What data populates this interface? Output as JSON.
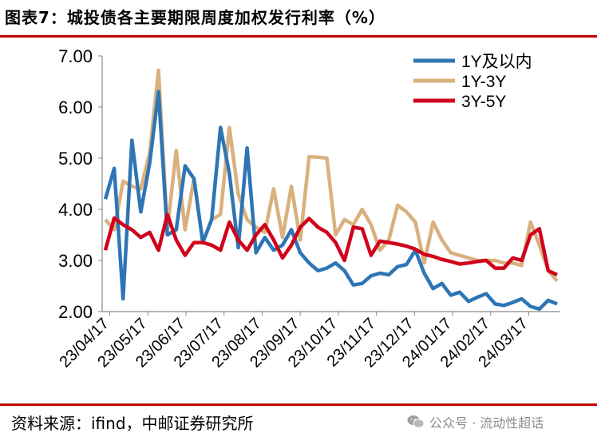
{
  "header": {
    "title": "图表7：城投债各主要期限周度加权发行利率（%）"
  },
  "footer": {
    "source": "资料来源：ifind，中邮证券研究所",
    "watermark": "公众号 · 流动性超话",
    "watermark_icon": "wechat-icon"
  },
  "colors": {
    "accent": "#c00000",
    "series_1": "#2e75b6",
    "series_2": "#d9b07e",
    "series_3": "#d0021b"
  },
  "chart_data": {
    "type": "line",
    "title": "图表7：城投债各主要期限周度加权发行利率（%）",
    "xlabel": "",
    "ylabel": "",
    "ylim": [
      2.0,
      7.0
    ],
    "yticks": [
      "2.00",
      "3.00",
      "4.00",
      "5.00",
      "6.00",
      "7.00"
    ],
    "xticks": [
      "23/04/17",
      "23/05/17",
      "23/06/17",
      "23/07/17",
      "23/08/17",
      "23/09/17",
      "23/10/17",
      "23/11/17",
      "23/12/17",
      "24/01/17",
      "24/02/17",
      "24/03/17"
    ],
    "legend_position": "top-right",
    "series": [
      {
        "name": "1Y及以内",
        "values": [
          4.2,
          4.8,
          2.25,
          5.35,
          3.95,
          4.9,
          6.3,
          3.5,
          3.6,
          4.85,
          4.6,
          3.35,
          3.8,
          5.6,
          4.7,
          3.25,
          5.2,
          3.15,
          3.45,
          3.2,
          3.3,
          3.6,
          3.15,
          2.95,
          2.8,
          2.85,
          2.95,
          2.8,
          2.52,
          2.55,
          2.7,
          2.75,
          2.72,
          2.88,
          2.92,
          3.2,
          2.75,
          2.45,
          2.55,
          2.32,
          2.38,
          2.2,
          2.28,
          2.35,
          2.15,
          2.12,
          2.18,
          2.25,
          2.1,
          2.05,
          2.22,
          2.15
        ]
      },
      {
        "name": "1Y-3Y",
        "values": [
          3.8,
          3.6,
          4.55,
          4.45,
          4.4,
          5.1,
          6.72,
          3.6,
          5.15,
          3.6,
          4.6,
          3.35,
          3.8,
          3.9,
          5.6,
          4.3,
          3.8,
          3.65,
          3.55,
          4.4,
          3.45,
          4.45,
          3.4,
          5.03,
          5.02,
          5.0,
          3.5,
          3.8,
          3.7,
          4.0,
          3.7,
          3.2,
          3.4,
          4.08,
          3.95,
          3.75,
          2.95,
          3.75,
          3.4,
          3.15,
          3.1,
          3.05,
          3.0,
          3.0,
          3.0,
          2.95,
          2.95,
          2.9,
          3.75,
          3.3,
          2.8,
          2.6
        ]
      },
      {
        "name": "3Y-5Y",
        "values": [
          3.2,
          3.83,
          3.7,
          3.6,
          3.45,
          3.55,
          3.2,
          3.9,
          3.4,
          3.1,
          3.35,
          3.35,
          3.3,
          3.2,
          3.75,
          3.4,
          3.2,
          3.5,
          3.7,
          3.4,
          3.05,
          3.3,
          3.65,
          3.82,
          3.65,
          3.55,
          3.35,
          3.0,
          3.65,
          3.62,
          3.1,
          3.38,
          3.35,
          3.32,
          3.28,
          3.22,
          3.12,
          3.08,
          3.02,
          2.98,
          2.93,
          2.95,
          2.98,
          3.0,
          2.85,
          2.85,
          3.05,
          3.0,
          3.5,
          3.62,
          2.8,
          2.72
        ]
      }
    ]
  }
}
